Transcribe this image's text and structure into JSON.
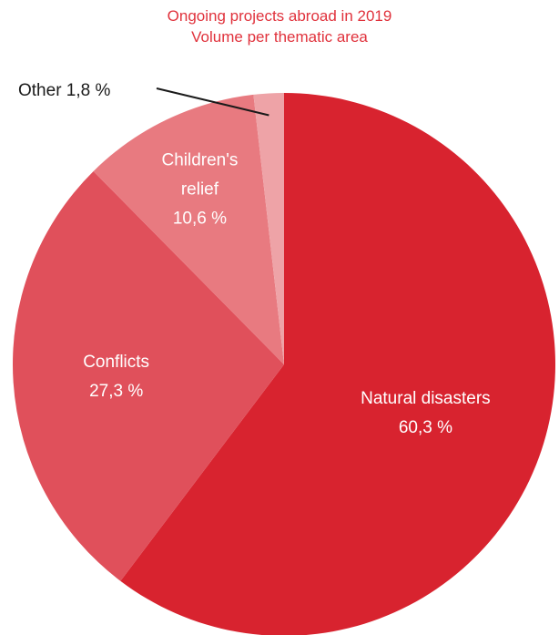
{
  "chart_data": {
    "type": "pie",
    "title": "Ongoing projects abroad in 2019",
    "subtitle": "Volume per thematic area",
    "start": "12 o'clock",
    "direction": "clockwise",
    "slices": [
      {
        "label": [
          "Natural disasters",
          "60,3 %"
        ],
        "value": 60.3,
        "color": "#d8232f"
      },
      {
        "label": [
          "Conflicts",
          "27,3 %"
        ],
        "value": 27.3,
        "color": "#e0505b"
      },
      {
        "label": [
          "Children's",
          "relief",
          "10,6 %"
        ],
        "value": 10.6,
        "color": "#e87a80"
      },
      {
        "label": [
          "Other 1,8 %"
        ],
        "value": 1.8,
        "color": "#eea3a7"
      }
    ]
  }
}
